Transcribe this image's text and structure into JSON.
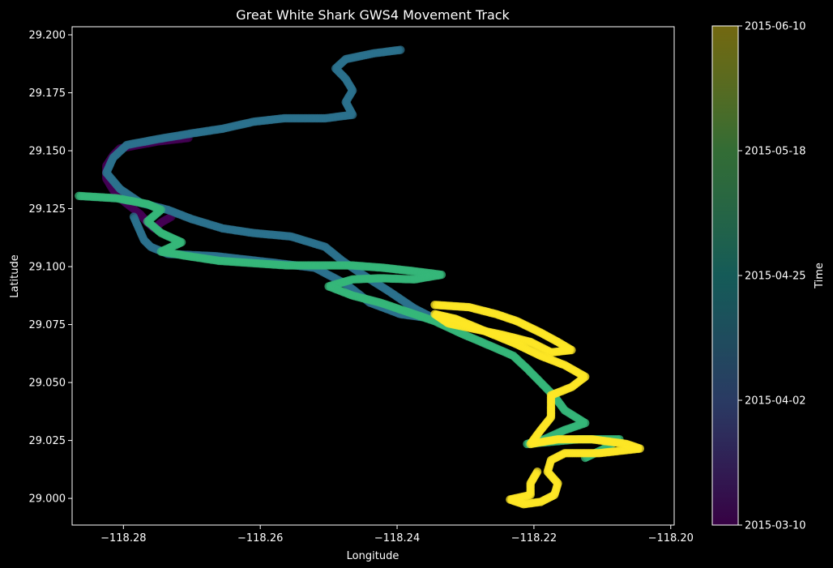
{
  "chart_data": {
    "type": "scatter",
    "title": "Great White Shark GWS4 Movement Track",
    "xlabel": "Longitude",
    "ylabel": "Latitude",
    "xlim": [
      -118.2875,
      -118.1995
    ],
    "ylim": [
      28.9885,
      29.2035
    ],
    "x_ticks": [
      -118.28,
      -118.26,
      -118.24,
      -118.22,
      -118.2
    ],
    "x_tick_labels": [
      "−118.28",
      "−118.26",
      "−118.24",
      "−118.22",
      "−118.20"
    ],
    "y_ticks": [
      29.0,
      29.025,
      29.05,
      29.075,
      29.1,
      29.125,
      29.15,
      29.175,
      29.2
    ],
    "y_tick_labels": [
      "29.000",
      "29.025",
      "29.050",
      "29.075",
      "29.100",
      "29.125",
      "29.150",
      "29.175",
      "29.200"
    ],
    "grid": false,
    "colormap": "viridis",
    "colorbar": {
      "label": "Time",
      "ticks": [
        "2015-03-10",
        "2015-04-02",
        "2015-04-25",
        "2015-05-18",
        "2015-06-10"
      ],
      "tick_positions": [
        0,
        0.25,
        0.5,
        0.75,
        1.0
      ]
    },
    "series": [
      {
        "period": "early March",
        "time_fraction": 0.03,
        "color": "#440154",
        "points": [
          [
            -118.2705,
            29.1555
          ],
          [
            -118.275,
            29.154
          ],
          [
            -118.2805,
            29.151
          ],
          [
            -118.2815,
            29.148
          ],
          [
            -118.2825,
            29.1435
          ],
          [
            -118.2825,
            29.138
          ],
          [
            -118.2815,
            29.133
          ],
          [
            -118.2805,
            29.1295
          ],
          [
            -118.279,
            29.126
          ],
          [
            -118.2775,
            29.1225
          ],
          [
            -118.2765,
            29.119
          ],
          [
            -118.2755,
            29.1165
          ],
          [
            -118.2745,
            29.119
          ],
          [
            -118.273,
            29.1215
          ]
        ]
      },
      {
        "period": "March-April",
        "time_fraction": 0.38,
        "color": "#2c728e",
        "points": [
          [
            -118.2395,
            29.1935
          ],
          [
            -118.2435,
            29.192
          ],
          [
            -118.2475,
            29.1895
          ],
          [
            -118.249,
            29.1855
          ],
          [
            -118.2475,
            29.181
          ],
          [
            -118.2465,
            29.176
          ],
          [
            -118.2475,
            29.171
          ],
          [
            -118.2465,
            29.1655
          ],
          [
            -118.2505,
            29.164
          ],
          [
            -118.253,
            29.164
          ],
          [
            -118.2565,
            29.164
          ],
          [
            -118.261,
            29.1625
          ],
          [
            -118.2655,
            29.1595
          ],
          [
            -118.27,
            29.1575
          ],
          [
            -118.275,
            29.155
          ],
          [
            -118.2795,
            29.1525
          ],
          [
            -118.2815,
            29.147
          ],
          [
            -118.2825,
            29.1405
          ],
          [
            -118.2805,
            29.1335
          ],
          [
            -118.2775,
            29.1275
          ],
          [
            -118.2735,
            29.1245
          ],
          [
            -118.27,
            29.1205
          ],
          [
            -118.2655,
            29.1165
          ],
          [
            -118.261,
            29.1145
          ],
          [
            -118.2555,
            29.113
          ],
          [
            -118.2505,
            29.1085
          ],
          [
            -118.248,
            29.1025
          ],
          [
            -118.245,
            29.0965
          ],
          [
            -118.241,
            29.089
          ],
          [
            -118.2375,
            29.082
          ],
          [
            -118.2345,
            29.0775
          ],
          [
            -118.2395,
            29.0795
          ],
          [
            -118.244,
            29.0845
          ],
          [
            -118.2475,
            29.0925
          ],
          [
            -118.252,
            29.0995
          ],
          [
            -118.2575,
            29.1015
          ],
          [
            -118.262,
            29.103
          ],
          [
            -118.2665,
            29.1045
          ],
          [
            -118.2735,
            29.1055
          ],
          [
            -118.276,
            29.1085
          ],
          [
            -118.277,
            29.1115
          ],
          [
            -118.2785,
            29.1215
          ]
        ]
      },
      {
        "period": "May",
        "time_fraction": 0.72,
        "color": "#35b779",
        "points": [
          [
            -118.2865,
            29.1305
          ],
          [
            -118.281,
            29.1295
          ],
          [
            -118.2765,
            29.127
          ],
          [
            -118.2745,
            29.1245
          ],
          [
            -118.2765,
            29.1195
          ],
          [
            -118.2745,
            29.1145
          ],
          [
            -118.2715,
            29.1105
          ],
          [
            -118.2745,
            29.1065
          ],
          [
            -118.2705,
            29.1045
          ],
          [
            -118.266,
            29.1025
          ],
          [
            -118.261,
            29.1015
          ],
          [
            -118.256,
            29.1005
          ],
          [
            -118.251,
            29.1005
          ],
          [
            -118.2465,
            29.1005
          ],
          [
            -118.242,
            29.0995
          ],
          [
            -118.2375,
            29.098
          ],
          [
            -118.2335,
            29.0965
          ],
          [
            -118.2375,
            29.0945
          ],
          [
            -118.2425,
            29.095
          ],
          [
            -118.2465,
            29.0945
          ],
          [
            -118.25,
            29.0915
          ],
          [
            -118.2465,
            29.0875
          ],
          [
            -118.2425,
            29.0845
          ],
          [
            -118.239,
            29.081
          ],
          [
            -118.2345,
            29.0765
          ],
          [
            -118.2305,
            29.071
          ],
          [
            -118.2265,
            29.066
          ],
          [
            -118.223,
            29.0615
          ],
          [
            -118.221,
            29.056
          ],
          [
            -118.219,
            29.05
          ],
          [
            -118.217,
            29.044
          ],
          [
            -118.2155,
            29.038
          ],
          [
            -118.2125,
            29.0325
          ],
          [
            -118.2155,
            29.0295
          ],
          [
            -118.2185,
            29.0255
          ],
          [
            -118.221,
            29.0235
          ],
          [
            -118.2135,
            29.0255
          ],
          [
            -118.2075,
            29.0255
          ],
          [
            -118.21,
            29.021
          ],
          [
            -118.2125,
            29.0175
          ]
        ]
      },
      {
        "period": "late May-June",
        "time_fraction": 0.98,
        "color": "#fde725",
        "points": [
          [
            -118.2345,
            29.0835
          ],
          [
            -118.2295,
            29.0825
          ],
          [
            -118.2255,
            29.0795
          ],
          [
            -118.2225,
            29.0765
          ],
          [
            -118.219,
            29.0715
          ],
          [
            -118.2165,
            29.0675
          ],
          [
            -118.2145,
            29.064
          ],
          [
            -118.2175,
            29.063
          ],
          [
            -118.2205,
            29.0675
          ],
          [
            -118.2245,
            29.0705
          ],
          [
            -118.2285,
            29.073
          ],
          [
            -118.2325,
            29.0755
          ],
          [
            -118.2345,
            29.0795
          ],
          [
            -118.2315,
            29.0775
          ],
          [
            -118.227,
            29.072
          ],
          [
            -118.2225,
            29.0665
          ],
          [
            -118.219,
            29.0615
          ],
          [
            -118.2155,
            29.0575
          ],
          [
            -118.2125,
            29.0525
          ],
          [
            -118.2145,
            29.048
          ],
          [
            -118.2175,
            29.0445
          ],
          [
            -118.2175,
            29.0395
          ],
          [
            -118.2175,
            29.035
          ],
          [
            -118.219,
            29.0295
          ],
          [
            -118.2205,
            29.0235
          ],
          [
            -118.2165,
            29.0255
          ],
          [
            -118.2115,
            29.0255
          ],
          [
            -118.2065,
            29.0235
          ],
          [
            -118.2045,
            29.0215
          ],
          [
            -118.2105,
            29.0195
          ],
          [
            -118.2155,
            29.0195
          ],
          [
            -118.2175,
            29.0165
          ],
          [
            -118.218,
            29.0115
          ],
          [
            -118.2165,
            29.0065
          ],
          [
            -118.217,
            29.0015
          ],
          [
            -118.219,
            28.9985
          ],
          [
            -118.2215,
            28.9975
          ],
          [
            -118.2235,
            28.9995
          ],
          [
            -118.2205,
            29.0015
          ],
          [
            -118.2205,
            29.0065
          ],
          [
            -118.2195,
            29.0115
          ]
        ]
      }
    ]
  }
}
